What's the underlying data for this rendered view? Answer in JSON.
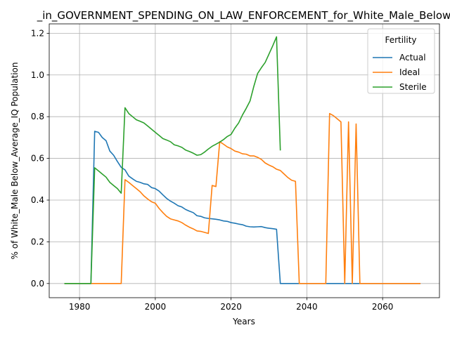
{
  "chart_data": {
    "type": "line",
    "title": "_in_GOVERNMENT_SPENDING_ON_LAW_ENFORCEMENT_for_White_Male_Below",
    "xlabel": "Years",
    "ylabel": "% of White_Male Below_Average_IQ Population",
    "xlim": [
      1972,
      2075
    ],
    "ylim": [
      -0.068,
      1.245
    ],
    "xticks": [
      1980,
      2000,
      2020,
      2040,
      2060
    ],
    "yticks": [
      0.0,
      0.2,
      0.4,
      0.6,
      0.8,
      1.0,
      1.2
    ],
    "grid": true,
    "legend": {
      "title": "Fertility",
      "placement": "top-right"
    },
    "series": [
      {
        "name": "Actual",
        "color": "#1f77b4",
        "points": [
          [
            1976,
            0
          ],
          [
            1983,
            0
          ],
          [
            1984,
            0.73
          ],
          [
            1985,
            0.725
          ],
          [
            1986,
            0.7
          ],
          [
            1987,
            0.685
          ],
          [
            1988,
            0.635
          ],
          [
            1989,
            0.615
          ],
          [
            1990,
            0.585
          ],
          [
            1991,
            0.557
          ],
          [
            1992,
            0.545
          ],
          [
            1993,
            0.515
          ],
          [
            1994,
            0.502
          ],
          [
            1995,
            0.49
          ],
          [
            1996,
            0.485
          ],
          [
            1997,
            0.478
          ],
          [
            1998,
            0.475
          ],
          [
            1999,
            0.46
          ],
          [
            2000,
            0.455
          ],
          [
            2001,
            0.443
          ],
          [
            2002,
            0.425
          ],
          [
            2003,
            0.408
          ],
          [
            2004,
            0.395
          ],
          [
            2005,
            0.385
          ],
          [
            2006,
            0.373
          ],
          [
            2007,
            0.367
          ],
          [
            2008,
            0.355
          ],
          [
            2009,
            0.347
          ],
          [
            2010,
            0.34
          ],
          [
            2011,
            0.325
          ],
          [
            2012,
            0.322
          ],
          [
            2013,
            0.315
          ],
          [
            2014,
            0.312
          ],
          [
            2015,
            0.31
          ],
          [
            2016,
            0.308
          ],
          [
            2017,
            0.305
          ],
          [
            2018,
            0.3
          ],
          [
            2019,
            0.298
          ],
          [
            2020,
            0.292
          ],
          [
            2021,
            0.289
          ],
          [
            2022,
            0.285
          ],
          [
            2023,
            0.282
          ],
          [
            2024,
            0.275
          ],
          [
            2025,
            0.272
          ],
          [
            2026,
            0.271
          ],
          [
            2027,
            0.272
          ],
          [
            2028,
            0.273
          ],
          [
            2029,
            0.268
          ],
          [
            2030,
            0.265
          ],
          [
            2031,
            0.263
          ],
          [
            2032,
            0.26
          ],
          [
            2033,
            0
          ],
          [
            2070,
            0
          ]
        ]
      },
      {
        "name": "Ideal",
        "color": "#ff7f0e",
        "points": [
          [
            1976,
            0
          ],
          [
            1991,
            0
          ],
          [
            1992,
            0.498
          ],
          [
            1993,
            0.485
          ],
          [
            1994,
            0.47
          ],
          [
            1995,
            0.455
          ],
          [
            1996,
            0.44
          ],
          [
            1997,
            0.42
          ],
          [
            1998,
            0.405
          ],
          [
            1999,
            0.392
          ],
          [
            2000,
            0.385
          ],
          [
            2001,
            0.36
          ],
          [
            2002,
            0.34
          ],
          [
            2003,
            0.322
          ],
          [
            2004,
            0.31
          ],
          [
            2005,
            0.305
          ],
          [
            2006,
            0.3
          ],
          [
            2007,
            0.292
          ],
          [
            2008,
            0.28
          ],
          [
            2009,
            0.27
          ],
          [
            2010,
            0.262
          ],
          [
            2011,
            0.252
          ],
          [
            2012,
            0.25
          ],
          [
            2013,
            0.245
          ],
          [
            2014,
            0.24
          ],
          [
            2015,
            0.47
          ],
          [
            2016,
            0.465
          ],
          [
            2017,
            0.68
          ],
          [
            2018,
            0.668
          ],
          [
            2019,
            0.655
          ],
          [
            2020,
            0.647
          ],
          [
            2021,
            0.635
          ],
          [
            2022,
            0.63
          ],
          [
            2023,
            0.622
          ],
          [
            2024,
            0.62
          ],
          [
            2025,
            0.612
          ],
          [
            2026,
            0.612
          ],
          [
            2027,
            0.605
          ],
          [
            2028,
            0.595
          ],
          [
            2029,
            0.578
          ],
          [
            2030,
            0.568
          ],
          [
            2031,
            0.56
          ],
          [
            2032,
            0.548
          ],
          [
            2033,
            0.542
          ],
          [
            2034,
            0.525
          ],
          [
            2035,
            0.508
          ],
          [
            2036,
            0.495
          ],
          [
            2037,
            0.49
          ],
          [
            2038,
            0
          ],
          [
            2045,
            0
          ],
          [
            2046,
            0.815
          ],
          [
            2047,
            0.805
          ],
          [
            2048,
            0.79
          ],
          [
            2049,
            0.775
          ],
          [
            2050,
            0
          ],
          [
            2051,
            0.775
          ],
          [
            2052,
            0
          ],
          [
            2053,
            0.765
          ],
          [
            2054,
            0
          ],
          [
            2070,
            0
          ]
        ]
      },
      {
        "name": "Sterile",
        "color": "#2ca02c",
        "points": [
          [
            1976,
            0
          ],
          [
            1983,
            0
          ],
          [
            1984,
            0.555
          ],
          [
            1985,
            0.54
          ],
          [
            1986,
            0.525
          ],
          [
            1987,
            0.51
          ],
          [
            1988,
            0.485
          ],
          [
            1989,
            0.47
          ],
          [
            1990,
            0.455
          ],
          [
            1991,
            0.433
          ],
          [
            1992,
            0.843
          ],
          [
            1993,
            0.815
          ],
          [
            1994,
            0.8
          ],
          [
            1995,
            0.785
          ],
          [
            1996,
            0.778
          ],
          [
            1997,
            0.77
          ],
          [
            1998,
            0.755
          ],
          [
            1999,
            0.74
          ],
          [
            2000,
            0.725
          ],
          [
            2001,
            0.71
          ],
          [
            2002,
            0.695
          ],
          [
            2003,
            0.688
          ],
          [
            2004,
            0.68
          ],
          [
            2005,
            0.665
          ],
          [
            2006,
            0.66
          ],
          [
            2007,
            0.653
          ],
          [
            2008,
            0.64
          ],
          [
            2009,
            0.633
          ],
          [
            2010,
            0.625
          ],
          [
            2011,
            0.615
          ],
          [
            2012,
            0.618
          ],
          [
            2013,
            0.63
          ],
          [
            2014,
            0.645
          ],
          [
            2015,
            0.658
          ],
          [
            2016,
            0.668
          ],
          [
            2017,
            0.678
          ],
          [
            2018,
            0.69
          ],
          [
            2019,
            0.705
          ],
          [
            2020,
            0.715
          ],
          [
            2021,
            0.745
          ],
          [
            2022,
            0.77
          ],
          [
            2023,
            0.808
          ],
          [
            2024,
            0.84
          ],
          [
            2025,
            0.875
          ],
          [
            2026,
            0.945
          ],
          [
            2027,
            1.007
          ],
          [
            2028,
            1.035
          ],
          [
            2029,
            1.06
          ],
          [
            2030,
            1.1
          ],
          [
            2031,
            1.14
          ],
          [
            2032,
            1.183
          ],
          [
            2033,
            0.638
          ]
        ]
      }
    ]
  }
}
